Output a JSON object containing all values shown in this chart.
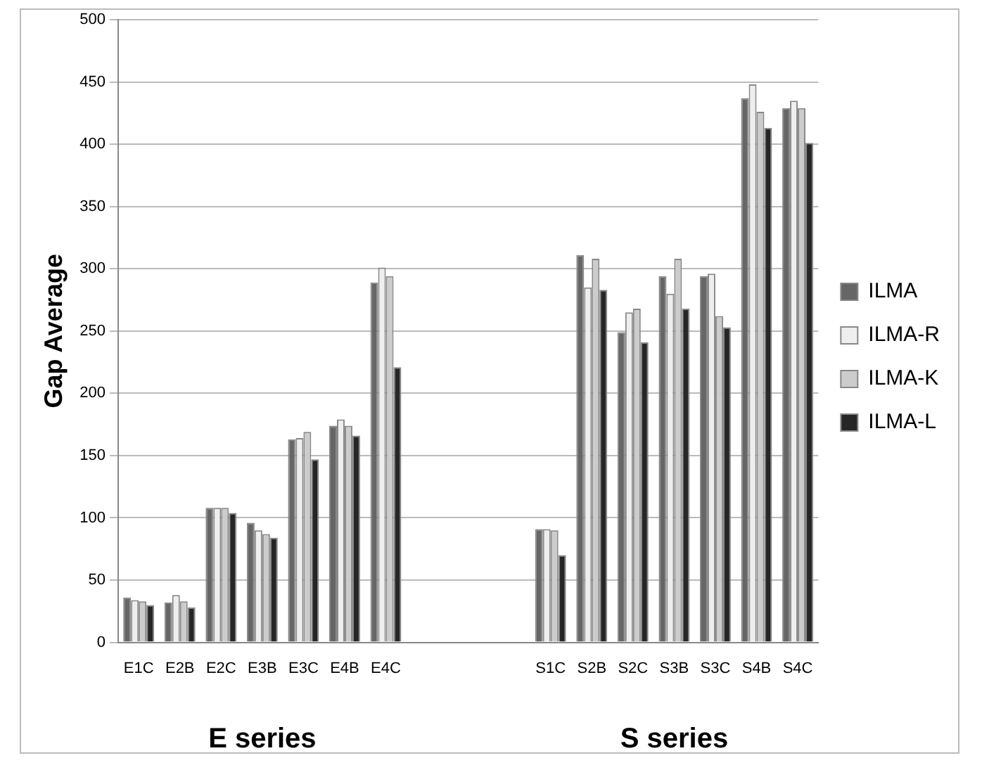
{
  "chart_data": {
    "type": "bar",
    "ylabel": "Gap Average",
    "categories": [
      "E1C",
      "E2B",
      "E2C",
      "E3B",
      "E3C",
      "E4B",
      "E4C",
      null,
      null,
      null,
      "S1C",
      "S2B",
      "S2C",
      "S3B",
      "S3C",
      "S4B",
      "S4C"
    ],
    "series": [
      {
        "name": "ILMA",
        "color": "#666666",
        "values": [
          36,
          32,
          108,
          96,
          163,
          174,
          289,
          null,
          null,
          null,
          91,
          311,
          249,
          294,
          294,
          437,
          429
        ]
      },
      {
        "name": "ILMA-R",
        "color": "#eeeeee",
        "values": [
          34,
          38,
          108,
          90,
          164,
          179,
          301,
          null,
          null,
          null,
          91,
          285,
          265,
          280,
          296,
          448,
          435
        ]
      },
      {
        "name": "ILMA-K",
        "color": "#cccccc",
        "values": [
          33,
          33,
          108,
          87,
          169,
          174,
          294,
          null,
          null,
          null,
          90,
          308,
          268,
          308,
          262,
          426,
          429
        ]
      },
      {
        "name": "ILMA-L",
        "color": "#262626",
        "values": [
          30,
          28,
          104,
          84,
          147,
          166,
          221,
          null,
          null,
          null,
          70,
          283,
          241,
          268,
          253,
          413,
          401
        ]
      }
    ],
    "ylim": [
      0,
      500
    ],
    "yticks": [
      0,
      50,
      100,
      150,
      200,
      250,
      300,
      350,
      400,
      450,
      500
    ],
    "grid": "y",
    "legend": "right",
    "annotations": [
      "E series",
      "S series"
    ]
  }
}
